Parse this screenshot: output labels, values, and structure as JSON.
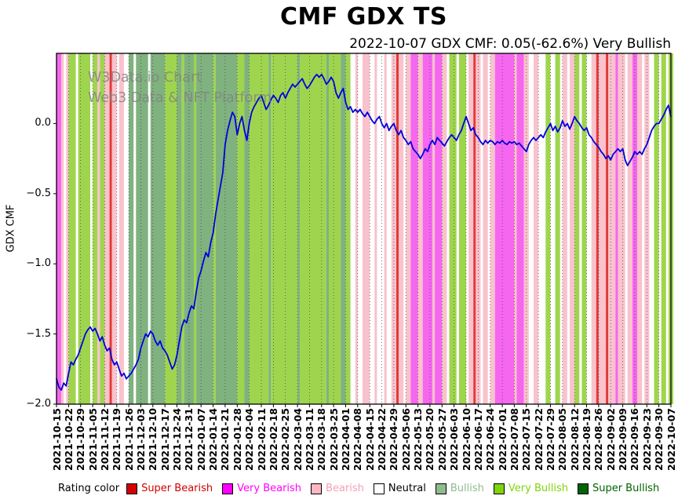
{
  "chart": {
    "title": "CMF GDX TS",
    "subtitle": "2022-10-07 GDX CMF: 0.05(-62.6%) Very Bullish",
    "ylabel": "GDX CMF",
    "watermark_line1": "W3Data.io Chart",
    "watermark_line2": "Web3 Data & NFT Platform",
    "legend_title": "Rating color"
  },
  "legend": {
    "items": [
      {
        "label": "Super Bearish",
        "swatch": "#d40000",
        "text": "#d40000"
      },
      {
        "label": "Very Bearish",
        "swatch": "#ff00ff",
        "text": "#ff00ff"
      },
      {
        "label": "Bearish",
        "swatch": "#ffb6c1",
        "text": "#f4a0b5"
      },
      {
        "label": "Neutral",
        "swatch": "#ffffff",
        "text": "#000000"
      },
      {
        "label": "Bullish",
        "swatch": "#8fbc8f",
        "text": "#8fbc8f"
      },
      {
        "label": "Very Bullish",
        "swatch": "#7fd40a",
        "text": "#7fd40a"
      },
      {
        "label": "Super Bullish",
        "swatch": "#006400",
        "text": "#006400"
      }
    ]
  },
  "chart_data": {
    "type": "line",
    "title": "CMF GDX TS",
    "subtitle": "2022-10-07 GDX CMF: 0.05(-62.6%) Very Bullish",
    "ylabel": "GDX CMF",
    "ylim": [
      -2.0,
      0.5
    ],
    "yticks": [
      0.0,
      -0.5,
      -1.0,
      -1.5,
      -2.0
    ],
    "ytick_labels": [
      "0.0",
      "−0.5",
      "−1.0",
      "−1.5",
      "−2.0"
    ],
    "grid": "vertical-dotted-weekly",
    "legend_position": "bottom",
    "x_unit": "trading-day index, 5 per labeled week, 256 days total",
    "x_tick_every_days": 5,
    "x_tick_labels": [
      "2021-10-15",
      "2021-10-22",
      "2021-10-29",
      "2021-11-05",
      "2021-11-12",
      "2021-11-19",
      "2021-11-26",
      "2021-12-03",
      "2021-12-10",
      "2021-12-17",
      "2021-12-24",
      "2021-12-31",
      "2022-01-07",
      "2022-01-14",
      "2022-01-21",
      "2022-01-28",
      "2022-02-04",
      "2022-02-11",
      "2022-02-18",
      "2022-02-25",
      "2022-03-04",
      "2022-03-11",
      "2022-03-18",
      "2022-03-25",
      "2022-04-01",
      "2022-04-08",
      "2022-04-15",
      "2022-04-22",
      "2022-04-29",
      "2022-05-06",
      "2022-05-13",
      "2022-05-20",
      "2022-05-27",
      "2022-06-03",
      "2022-06-10",
      "2022-06-17",
      "2022-06-24",
      "2022-07-01",
      "2022-07-08",
      "2022-07-15",
      "2022-07-22",
      "2022-07-29",
      "2022-08-05",
      "2022-08-12",
      "2022-08-19",
      "2022-08-26",
      "2022-09-02",
      "2022-09-09",
      "2022-09-16",
      "2022-09-23",
      "2022-09-30",
      "2022-10-07"
    ],
    "series": [
      {
        "name": "GDX CMF",
        "color": "#0000dd",
        "last_value": 0.05,
        "last_change_pct": -62.6,
        "last_rating": "Very Bullish",
        "values": [
          -1.82,
          -1.88,
          -1.9,
          -1.85,
          -1.87,
          -1.78,
          -1.7,
          -1.72,
          -1.68,
          -1.65,
          -1.6,
          -1.55,
          -1.5,
          -1.47,
          -1.45,
          -1.48,
          -1.46,
          -1.5,
          -1.55,
          -1.52,
          -1.58,
          -1.62,
          -1.6,
          -1.68,
          -1.72,
          -1.7,
          -1.75,
          -1.8,
          -1.78,
          -1.82,
          -1.8,
          -1.78,
          -1.75,
          -1.72,
          -1.68,
          -1.6,
          -1.55,
          -1.5,
          -1.52,
          -1.48,
          -1.5,
          -1.55,
          -1.58,
          -1.55,
          -1.6,
          -1.62,
          -1.65,
          -1.7,
          -1.75,
          -1.72,
          -1.65,
          -1.55,
          -1.45,
          -1.4,
          -1.42,
          -1.35,
          -1.3,
          -1.32,
          -1.2,
          -1.1,
          -1.05,
          -0.98,
          -0.92,
          -0.95,
          -0.85,
          -0.78,
          -0.65,
          -0.55,
          -0.45,
          -0.35,
          -0.15,
          -0.05,
          0.02,
          0.08,
          0.05,
          -0.08,
          0.0,
          0.05,
          -0.05,
          -0.12,
          0.0,
          0.08,
          0.12,
          0.15,
          0.18,
          0.2,
          0.15,
          0.1,
          0.13,
          0.17,
          0.2,
          0.18,
          0.15,
          0.2,
          0.22,
          0.18,
          0.22,
          0.25,
          0.28,
          0.26,
          0.28,
          0.3,
          0.32,
          0.28,
          0.25,
          0.27,
          0.3,
          0.33,
          0.35,
          0.33,
          0.35,
          0.32,
          0.28,
          0.3,
          0.33,
          0.3,
          0.22,
          0.18,
          0.22,
          0.25,
          0.15,
          0.1,
          0.12,
          0.08,
          0.1,
          0.08,
          0.1,
          0.07,
          0.05,
          0.08,
          0.05,
          0.02,
          0.0,
          0.03,
          0.05,
          0.0,
          -0.03,
          0.0,
          -0.05,
          -0.02,
          0.0,
          -0.05,
          -0.08,
          -0.05,
          -0.1,
          -0.12,
          -0.15,
          -0.13,
          -0.18,
          -0.2,
          -0.22,
          -0.25,
          -0.22,
          -0.18,
          -0.2,
          -0.15,
          -0.12,
          -0.15,
          -0.1,
          -0.12,
          -0.14,
          -0.16,
          -0.13,
          -0.1,
          -0.08,
          -0.1,
          -0.12,
          -0.08,
          -0.05,
          0.0,
          0.05,
          0.0,
          -0.05,
          -0.03,
          -0.08,
          -0.1,
          -0.13,
          -0.15,
          -0.12,
          -0.14,
          -0.12,
          -0.13,
          -0.15,
          -0.13,
          -0.14,
          -0.12,
          -0.14,
          -0.15,
          -0.13,
          -0.14,
          -0.13,
          -0.15,
          -0.14,
          -0.16,
          -0.18,
          -0.2,
          -0.15,
          -0.12,
          -0.1,
          -0.12,
          -0.1,
          -0.08,
          -0.1,
          -0.06,
          -0.03,
          0.0,
          -0.05,
          -0.02,
          -0.06,
          -0.03,
          0.02,
          -0.02,
          0.0,
          -0.04,
          0.0,
          0.05,
          0.02,
          0.0,
          -0.03,
          -0.05,
          -0.03,
          -0.08,
          -0.1,
          -0.13,
          -0.15,
          -0.17,
          -0.2,
          -0.22,
          -0.25,
          -0.23,
          -0.26,
          -0.22,
          -0.2,
          -0.18,
          -0.2,
          -0.18,
          -0.26,
          -0.3,
          -0.27,
          -0.24,
          -0.2,
          -0.22,
          -0.2,
          -0.22,
          -0.18,
          -0.15,
          -0.1,
          -0.05,
          -0.02,
          0.0,
          0.0,
          0.03,
          0.06,
          0.1,
          0.13,
          0.05
        ]
      }
    ],
    "background_bands": {
      "unit": "day-index ranges [start, end_exclusive, rating]",
      "colors": {
        "SB": "#e23a36",
        "VB": "#f567ef",
        "B": "#f9c2cc",
        "N": "#ffffff",
        "BU": "#7fb27f",
        "VBU": "#9fd54e",
        "SBU": "#1b5e20"
      },
      "segments": [
        [
          0,
          2,
          "VB"
        ],
        [
          2,
          3,
          "B"
        ],
        [
          4,
          5,
          "B"
        ],
        [
          5,
          8,
          "VBU"
        ],
        [
          9,
          14,
          "VBU"
        ],
        [
          15,
          17,
          "VBU"
        ],
        [
          17,
          18,
          "B"
        ],
        [
          18,
          20,
          "VBU"
        ],
        [
          20,
          22,
          "B"
        ],
        [
          22,
          23,
          "SB"
        ],
        [
          23,
          25,
          "B"
        ],
        [
          26,
          28,
          "B"
        ],
        [
          30,
          32,
          "BU"
        ],
        [
          33,
          38,
          "BU"
        ],
        [
          39,
          45,
          "BU"
        ],
        [
          45,
          50,
          "VBU"
        ],
        [
          50,
          52,
          "BU"
        ],
        [
          52,
          53,
          "VBU"
        ],
        [
          53,
          57,
          "BU"
        ],
        [
          57,
          58,
          "VBU"
        ],
        [
          58,
          65,
          "BU"
        ],
        [
          65,
          66,
          "VBU"
        ],
        [
          66,
          75,
          "BU"
        ],
        [
          75,
          78,
          "VBU"
        ],
        [
          78,
          80,
          "BU"
        ],
        [
          80,
          88,
          "VBU"
        ],
        [
          88,
          89,
          "BU"
        ],
        [
          89,
          100,
          "VBU"
        ],
        [
          100,
          101,
          "BU"
        ],
        [
          101,
          112,
          "VBU"
        ],
        [
          112,
          113,
          "BU"
        ],
        [
          113,
          118,
          "VBU"
        ],
        [
          118,
          120,
          "BU"
        ],
        [
          120,
          122,
          "VBU"
        ],
        [
          124,
          125,
          "B"
        ],
        [
          127,
          130,
          "B"
        ],
        [
          132,
          133,
          "B"
        ],
        [
          136,
          137,
          "B"
        ],
        [
          139,
          141,
          "B"
        ],
        [
          141,
          142,
          "SB"
        ],
        [
          142,
          144,
          "B"
        ],
        [
          145,
          147,
          "B"
        ],
        [
          147,
          150,
          "VB"
        ],
        [
          150,
          152,
          "B"
        ],
        [
          152,
          156,
          "VB"
        ],
        [
          156,
          157,
          "B"
        ],
        [
          157,
          160,
          "VB"
        ],
        [
          160,
          162,
          "B"
        ],
        [
          163,
          166,
          "VBU"
        ],
        [
          167,
          170,
          "VBU"
        ],
        [
          171,
          173,
          "B"
        ],
        [
          173,
          174,
          "SB"
        ],
        [
          174,
          176,
          "B"
        ],
        [
          177,
          179,
          "B"
        ],
        [
          180,
          182,
          "B"
        ],
        [
          182,
          190,
          "VB"
        ],
        [
          190,
          191,
          "B"
        ],
        [
          191,
          194,
          "VB"
        ],
        [
          194,
          196,
          "B"
        ],
        [
          198,
          200,
          "B"
        ],
        [
          203,
          205,
          "VBU"
        ],
        [
          207,
          209,
          "VBU"
        ],
        [
          210,
          212,
          "B"
        ],
        [
          213,
          215,
          "B"
        ],
        [
          215,
          217,
          "VBU"
        ],
        [
          218,
          220,
          "VBU"
        ],
        [
          222,
          224,
          "B"
        ],
        [
          224,
          225,
          "SB"
        ],
        [
          225,
          228,
          "B"
        ],
        [
          228,
          229,
          "SB"
        ],
        [
          229,
          232,
          "B"
        ],
        [
          232,
          233,
          "VB"
        ],
        [
          233,
          236,
          "B"
        ],
        [
          237,
          239,
          "B"
        ],
        [
          239,
          241,
          "VB"
        ],
        [
          241,
          243,
          "B"
        ],
        [
          244,
          246,
          "B"
        ],
        [
          248,
          250,
          "VBU"
        ],
        [
          251,
          253,
          "VBU"
        ],
        [
          254,
          256,
          "VBU"
        ]
      ]
    }
  }
}
